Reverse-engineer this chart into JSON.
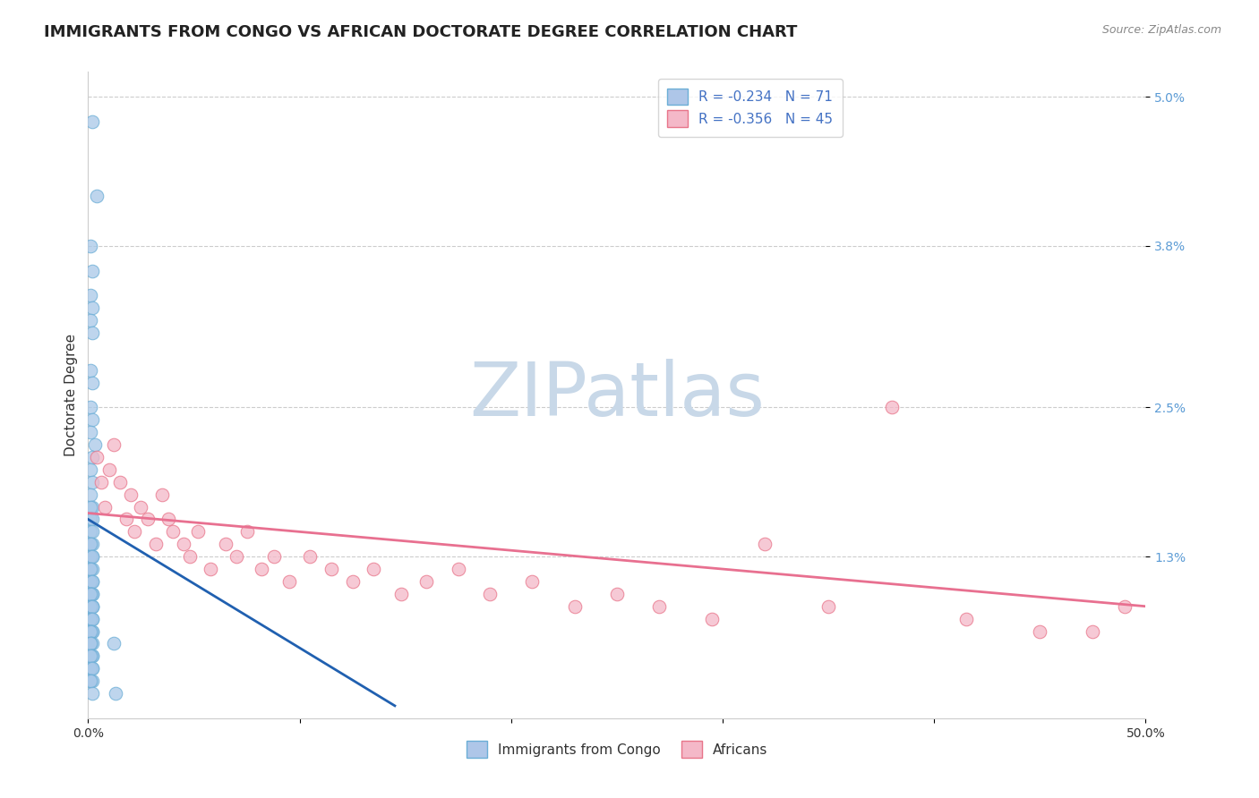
{
  "title": "IMMIGRANTS FROM CONGO VS AFRICAN DOCTORATE DEGREE CORRELATION CHART",
  "source": "Source: ZipAtlas.com",
  "ylabel": "Doctorate Degree",
  "xlim": [
    0.0,
    0.5
  ],
  "ylim": [
    0.0,
    0.052
  ],
  "ytick_positions": [
    0.013,
    0.025,
    0.038,
    0.05
  ],
  "ytick_labels": [
    "1.3%",
    "2.5%",
    "3.8%",
    "5.0%"
  ],
  "xtick_positions": [
    0.0,
    0.1,
    0.2,
    0.3,
    0.4,
    0.5
  ],
  "legend_entries": [
    {
      "label_r": "R = -0.234",
      "label_n": "N = 71",
      "color_face": "#aec6e8",
      "color_edge": "#6baed6"
    },
    {
      "label_r": "R = -0.356",
      "label_n": "N = 45",
      "color_face": "#f4b8c8",
      "color_edge": "#e8758a"
    }
  ],
  "watermark": "ZIPatlas",
  "blue_scatter_x": [
    0.002,
    0.004,
    0.001,
    0.002,
    0.001,
    0.002,
    0.001,
    0.002,
    0.001,
    0.002,
    0.001,
    0.002,
    0.001,
    0.003,
    0.002,
    0.001,
    0.002,
    0.001,
    0.002,
    0.001,
    0.001,
    0.002,
    0.001,
    0.002,
    0.001,
    0.002,
    0.001,
    0.002,
    0.001,
    0.002,
    0.001,
    0.002,
    0.001,
    0.002,
    0.001,
    0.002,
    0.001,
    0.002,
    0.001,
    0.002,
    0.001,
    0.002,
    0.001,
    0.002,
    0.001,
    0.002,
    0.001,
    0.002,
    0.001,
    0.002,
    0.001,
    0.002,
    0.001,
    0.002,
    0.001,
    0.002,
    0.001,
    0.012,
    0.001,
    0.002,
    0.001,
    0.002,
    0.001,
    0.002,
    0.001,
    0.002,
    0.001,
    0.002,
    0.001,
    0.002,
    0.013
  ],
  "blue_scatter_y": [
    0.048,
    0.042,
    0.038,
    0.036,
    0.034,
    0.033,
    0.032,
    0.031,
    0.028,
    0.027,
    0.025,
    0.024,
    0.023,
    0.022,
    0.021,
    0.02,
    0.019,
    0.018,
    0.017,
    0.017,
    0.016,
    0.016,
    0.015,
    0.015,
    0.014,
    0.014,
    0.014,
    0.013,
    0.013,
    0.013,
    0.012,
    0.012,
    0.012,
    0.011,
    0.011,
    0.011,
    0.01,
    0.01,
    0.01,
    0.01,
    0.01,
    0.009,
    0.009,
    0.009,
    0.009,
    0.009,
    0.008,
    0.008,
    0.008,
    0.008,
    0.007,
    0.007,
    0.007,
    0.007,
    0.007,
    0.006,
    0.006,
    0.006,
    0.006,
    0.005,
    0.005,
    0.005,
    0.005,
    0.004,
    0.004,
    0.004,
    0.003,
    0.003,
    0.003,
    0.002,
    0.002
  ],
  "pink_scatter_x": [
    0.004,
    0.006,
    0.008,
    0.01,
    0.012,
    0.015,
    0.018,
    0.02,
    0.022,
    0.025,
    0.028,
    0.032,
    0.035,
    0.038,
    0.04,
    0.045,
    0.048,
    0.052,
    0.058,
    0.065,
    0.07,
    0.075,
    0.082,
    0.088,
    0.095,
    0.105,
    0.115,
    0.125,
    0.135,
    0.148,
    0.16,
    0.175,
    0.19,
    0.21,
    0.23,
    0.25,
    0.27,
    0.295,
    0.32,
    0.35,
    0.38,
    0.415,
    0.45,
    0.475,
    0.49
  ],
  "pink_scatter_y": [
    0.021,
    0.019,
    0.017,
    0.02,
    0.022,
    0.019,
    0.016,
    0.018,
    0.015,
    0.017,
    0.016,
    0.014,
    0.018,
    0.016,
    0.015,
    0.014,
    0.013,
    0.015,
    0.012,
    0.014,
    0.013,
    0.015,
    0.012,
    0.013,
    0.011,
    0.013,
    0.012,
    0.011,
    0.012,
    0.01,
    0.011,
    0.012,
    0.01,
    0.011,
    0.009,
    0.01,
    0.009,
    0.008,
    0.014,
    0.009,
    0.025,
    0.008,
    0.007,
    0.007,
    0.009
  ],
  "blue_line_x": [
    0.0,
    0.145
  ],
  "blue_line_y": [
    0.016,
    0.001
  ],
  "pink_line_x": [
    0.0,
    0.5
  ],
  "pink_line_y": [
    0.0165,
    0.009
  ],
  "blue_scatter_color": "#a8c8e8",
  "blue_scatter_edge": "#6baed6",
  "pink_scatter_color": "#f4b8c8",
  "pink_scatter_edge": "#e8758a",
  "blue_line_color": "#2060b0",
  "pink_line_color": "#e87090",
  "grid_color": "#cccccc",
  "title_fontsize": 13,
  "axis_label_fontsize": 11,
  "tick_fontsize": 10,
  "legend_fontsize": 11,
  "watermark_color": "#c8d8e8",
  "watermark_fontsize": 60,
  "bottom_legend": [
    "Immigrants from Congo",
    "Africans"
  ]
}
